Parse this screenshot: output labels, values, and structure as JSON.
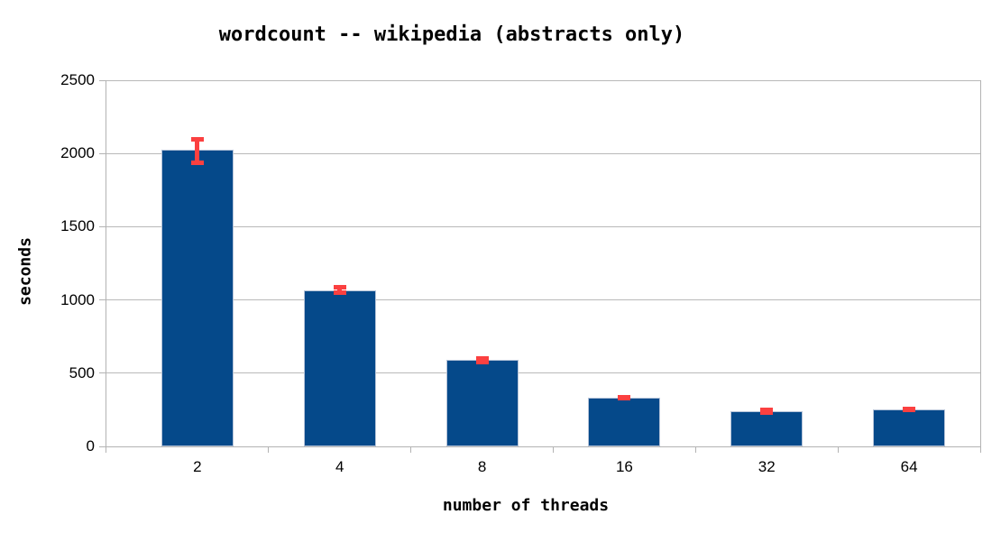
{
  "chart_data": {
    "type": "bar",
    "title": "wordcount -- wikipedia (abstracts only)",
    "xlabel": "number of threads",
    "ylabel": "seconds",
    "categories": [
      "2",
      "4",
      "8",
      "16",
      "32",
      "64"
    ],
    "values": [
      2025,
      1067,
      590,
      333,
      238,
      251
    ],
    "error_low": [
      1920,
      1032,
      563,
      313,
      213,
      232
    ],
    "error_high": [
      2115,
      1102,
      616,
      353,
      262,
      269
    ],
    "ylim": [
      0,
      2500
    ],
    "yticks": [
      0,
      500,
      1000,
      1500,
      2000,
      2500
    ],
    "grid": true,
    "legend": "none",
    "colors": {
      "bar_fill": "#05498a",
      "bar_border": "#b5c3d8",
      "error_bar": "#fb4040",
      "gridline": "#b9b9b9",
      "axis_line": "#b3b3b3",
      "text": "#000000",
      "background": "#ffffff"
    }
  }
}
